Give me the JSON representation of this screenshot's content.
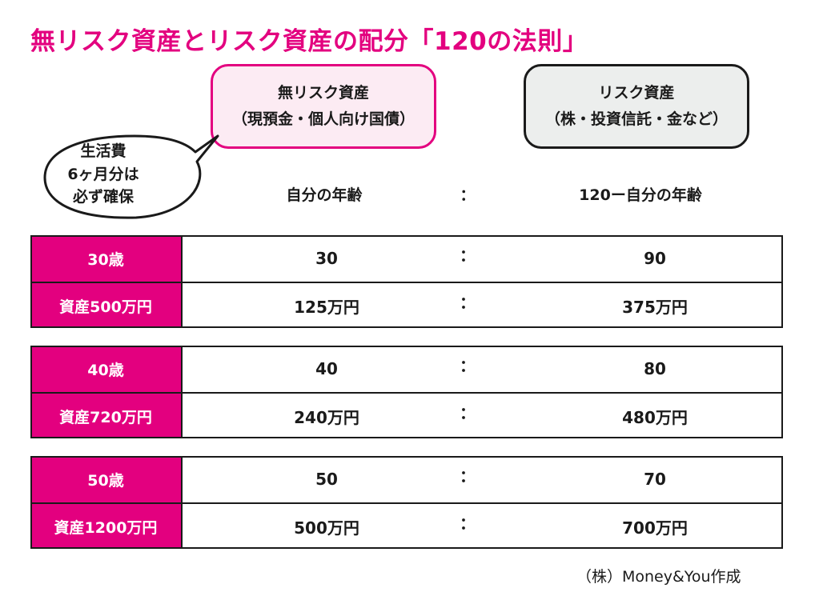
{
  "title": "無リスク資産とリスク資産の配分「120の法則」",
  "no_risk_box": {
    "line1": "無リスク資産",
    "line2": "（現預金・個人向け国債）"
  },
  "risk_box": {
    "line1": "リスク資産",
    "line2": "（株・投資信託・金など）"
  },
  "callout": {
    "line1": "生活費",
    "line2": "6ヶ月分は",
    "line3": "必ず確保"
  },
  "header": {
    "left": "自分の年齢",
    "colon": "：",
    "right": "120ー自分の年齢"
  },
  "groups": [
    {
      "rows": [
        {
          "label": "30歳",
          "a": "30",
          "b": "90"
        },
        {
          "label": "資産500万円",
          "a": "125万円",
          "b": "375万円"
        }
      ]
    },
    {
      "rows": [
        {
          "label": "40歳",
          "a": "40",
          "b": "80"
        },
        {
          "label": "資産720万円",
          "a": "240万円",
          "b": "480万円"
        }
      ]
    },
    {
      "rows": [
        {
          "label": "50歳",
          "a": "50",
          "b": "70"
        },
        {
          "label": "資産1200万円",
          "a": "500万円",
          "b": "700万円"
        }
      ]
    }
  ],
  "colon": "：",
  "credit": "（株）Money&You作成",
  "colors": {
    "accent": "#e3007f",
    "no_risk_bg": "#fcebf3",
    "risk_bg": "#eceeed",
    "line": "#1a1a1a"
  }
}
